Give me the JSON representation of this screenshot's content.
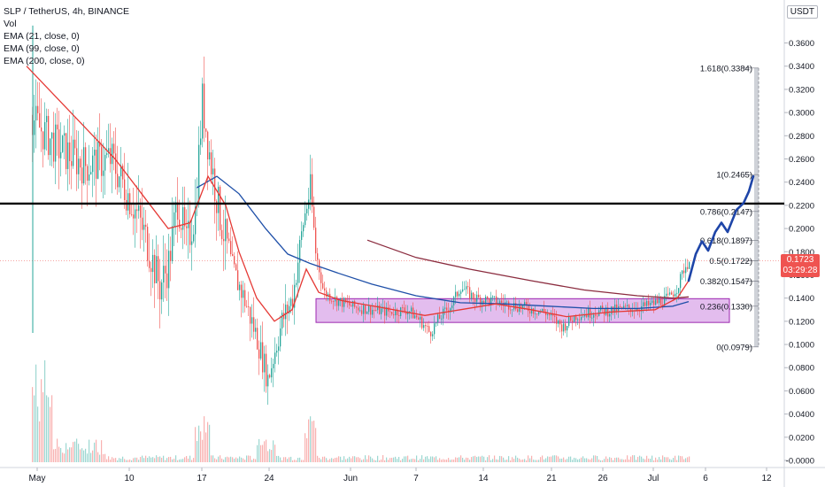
{
  "legend": {
    "symbol": "SLP / TetherUS, 4h, BINANCE",
    "vol": "Vol",
    "ema21": "EMA (21, close, 0)",
    "ema99": "EMA (99, close, 0)",
    "ema200": "EMA (200, close, 0)"
  },
  "currency": "USDT",
  "last_price": {
    "value": "0.1723",
    "countdown": "03:29:28"
  },
  "colors": {
    "up": "#26a69a",
    "down": "#ef5350",
    "ema21": "#e53935",
    "ema99": "#1e4fa8",
    "ema200": "#8b2c3f",
    "zone_fill": "#d9a7e8",
    "zone_stroke": "#9c27b0",
    "projection": "#1e45a8",
    "resistance": "#000000"
  },
  "chart_data": {
    "type": "candlestick",
    "y_ticks": [
      "0.3600",
      "0.3400",
      "0.3200",
      "0.3000",
      "0.2800",
      "0.2600",
      "0.2400",
      "0.2200",
      "0.2000",
      "0.1800",
      "0.1600",
      "0.1400",
      "0.1200",
      "0.1000",
      "0.0800",
      "0.0600",
      "0.0400",
      "0.0200",
      "-0.0000"
    ],
    "x_ticks": [
      "May",
      "10",
      "17",
      "24",
      "Jun",
      "7",
      "14",
      "21",
      "26",
      "Jul",
      "6",
      "12"
    ],
    "ylim": [
      -0.0035,
      0.3685
    ],
    "resistance_level": 0.2215,
    "consolidation_zone": {
      "low": 0.119,
      "high": 0.1395
    },
    "fibonacci": [
      {
        "label": "1.618(0.3384)",
        "value": 0.3384
      },
      {
        "label": "1(0.2465)",
        "value": 0.2465
      },
      {
        "label": "0.786(0.2147)",
        "value": 0.2147
      },
      {
        "label": "0.618(0.1897)",
        "value": 0.1897
      },
      {
        "label": "0.5(0.1722)",
        "value": 0.1722
      },
      {
        "label": "0.382(0.1547)",
        "value": 0.1547
      },
      {
        "label": "0.236(0.1330)",
        "value": 0.133
      },
      {
        "label": "0(0.0979)",
        "value": 0.0979
      }
    ],
    "price_path": [
      [
        0,
        0.12
      ],
      [
        3,
        0.3
      ],
      [
        10,
        0.36
      ],
      [
        20,
        0.33
      ],
      [
        40,
        0.29
      ],
      [
        65,
        0.27
      ],
      [
        95,
        0.255
      ],
      [
        125,
        0.26
      ],
      [
        150,
        0.22
      ],
      [
        165,
        0.19
      ],
      [
        180,
        0.15
      ],
      [
        190,
        0.17
      ],
      [
        200,
        0.225
      ],
      [
        210,
        0.185
      ],
      [
        220,
        0.215
      ],
      [
        228,
        0.31
      ],
      [
        236,
        0.265
      ],
      [
        248,
        0.21
      ],
      [
        262,
        0.165
      ],
      [
        275,
        0.14
      ],
      [
        290,
        0.105
      ],
      [
        302,
        0.07
      ],
      [
        318,
        0.12
      ],
      [
        330,
        0.14
      ],
      [
        342,
        0.205
      ],
      [
        350,
        0.235
      ],
      [
        356,
        0.18
      ],
      [
        365,
        0.145
      ],
      [
        380,
        0.138
      ],
      [
        400,
        0.132
      ],
      [
        420,
        0.13
      ],
      [
        440,
        0.128
      ],
      [
        460,
        0.13
      ],
      [
        475,
        0.12
      ],
      [
        485,
        0.11
      ],
      [
        495,
        0.122
      ],
      [
        510,
        0.135
      ],
      [
        520,
        0.15
      ],
      [
        535,
        0.14
      ],
      [
        560,
        0.137
      ],
      [
        590,
        0.132
      ],
      [
        615,
        0.128
      ],
      [
        635,
        0.115
      ],
      [
        650,
        0.125
      ],
      [
        670,
        0.128
      ],
      [
        700,
        0.13
      ],
      [
        730,
        0.133
      ],
      [
        755,
        0.14
      ],
      [
        765,
        0.15
      ],
      [
        772,
        0.165
      ],
      [
        778,
        0.172
      ]
    ],
    "ema21_path": [
      [
        30,
        0.34
      ],
      [
        80,
        0.3
      ],
      [
        130,
        0.26
      ],
      [
        160,
        0.23
      ],
      [
        190,
        0.2
      ],
      [
        215,
        0.205
      ],
      [
        235,
        0.245
      ],
      [
        255,
        0.22
      ],
      [
        270,
        0.18
      ],
      [
        290,
        0.14
      ],
      [
        310,
        0.12
      ],
      [
        330,
        0.13
      ],
      [
        346,
        0.165
      ],
      [
        360,
        0.145
      ],
      [
        385,
        0.138
      ],
      [
        430,
        0.132
      ],
      [
        480,
        0.125
      ],
      [
        520,
        0.13
      ],
      [
        560,
        0.135
      ],
      [
        600,
        0.13
      ],
      [
        640,
        0.124
      ],
      [
        690,
        0.128
      ],
      [
        740,
        0.13
      ],
      [
        765,
        0.14
      ],
      [
        778,
        0.155
      ]
    ],
    "ema99_path": [
      [
        222,
        0.235
      ],
      [
        245,
        0.245
      ],
      [
        270,
        0.23
      ],
      [
        300,
        0.2
      ],
      [
        325,
        0.178
      ],
      [
        350,
        0.17
      ],
      [
        380,
        0.162
      ],
      [
        420,
        0.152
      ],
      [
        470,
        0.142
      ],
      [
        520,
        0.136
      ],
      [
        570,
        0.135
      ],
      [
        620,
        0.133
      ],
      [
        670,
        0.131
      ],
      [
        720,
        0.131
      ],
      [
        760,
        0.133
      ],
      [
        778,
        0.137
      ]
    ],
    "ema200_path": [
      [
        415,
        0.19
      ],
      [
        470,
        0.175
      ],
      [
        530,
        0.165
      ],
      [
        600,
        0.155
      ],
      [
        660,
        0.147
      ],
      [
        720,
        0.142
      ],
      [
        760,
        0.14
      ],
      [
        778,
        0.141
      ]
    ],
    "projection_path": [
      [
        778,
        0.155
      ],
      [
        786,
        0.178
      ],
      [
        793,
        0.189
      ],
      [
        800,
        0.181
      ],
      [
        808,
        0.197
      ],
      [
        815,
        0.205
      ],
      [
        822,
        0.197
      ],
      [
        832,
        0.216
      ],
      [
        840,
        0.222
      ],
      [
        846,
        0.232
      ],
      [
        851,
        0.245
      ]
    ]
  }
}
